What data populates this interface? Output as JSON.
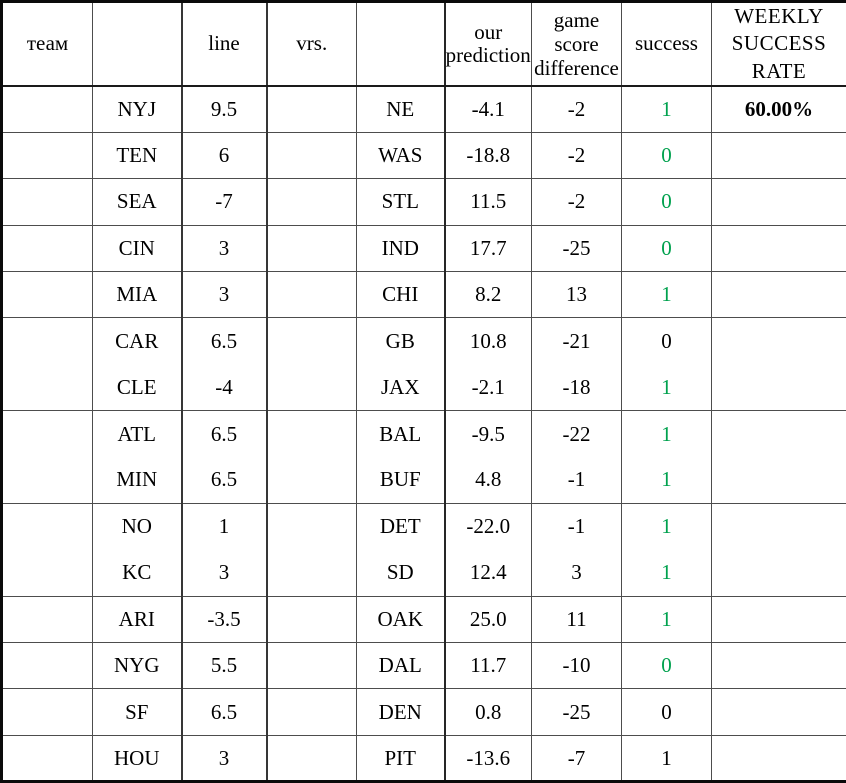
{
  "colors": {
    "red": "#ee0000",
    "green": "#00a14e",
    "black": "#000000"
  },
  "table": {
    "headers": [
      {
        "label": "теам"
      },
      {
        "label": ""
      },
      {
        "label": "line"
      },
      {
        "label": "vrs."
      },
      {
        "label": ""
      },
      {
        "label": "our prediction"
      },
      {
        "label": "game score difference"
      },
      {
        "label": "success"
      },
      {
        "label": "WEEKLY SUCCESS RATE"
      }
    ],
    "rows": [
      {
        "team": "NYJ",
        "line": "9.5",
        "opponent": "NE",
        "prediction": "-4.1",
        "score_difference": "-2",
        "success": "1",
        "success_color": "green",
        "weekly_rate": "60.00%",
        "merged_with_previous_row": false
      },
      {
        "team": "TEN",
        "line": "6",
        "opponent": "WAS",
        "prediction": "-18.8",
        "score_difference": "-2",
        "success": "0",
        "success_color": "green",
        "weekly_rate": "",
        "merged_with_previous_row": false
      },
      {
        "team": "SEA",
        "line": "-7",
        "opponent": "STL",
        "prediction": "11.5",
        "score_difference": "-2",
        "success": "0",
        "success_color": "green",
        "weekly_rate": "",
        "merged_with_previous_row": false
      },
      {
        "team": "CIN",
        "line": "3",
        "opponent": "IND",
        "prediction": "17.7",
        "score_difference": "-25",
        "success": "0",
        "success_color": "green",
        "weekly_rate": "",
        "merged_with_previous_row": false
      },
      {
        "team": "MIA",
        "line": "3",
        "opponent": "CHI",
        "prediction": "8.2",
        "score_difference": "13",
        "success": "1",
        "success_color": "green",
        "weekly_rate": "",
        "merged_with_previous_row": false
      },
      {
        "team": "CAR",
        "line": "6.5",
        "opponent": "GB",
        "prediction": "10.8",
        "score_difference": "-21",
        "success": "0",
        "success_color": "black",
        "weekly_rate": "",
        "merged_with_previous_row": false
      },
      {
        "team": "CLE",
        "line": "-4",
        "opponent": "JAX",
        "prediction": "-2.1",
        "score_difference": "-18",
        "success": "1",
        "success_color": "green",
        "weekly_rate": "",
        "merged_with_previous_row": true
      },
      {
        "team": "ATL",
        "line": "6.5",
        "opponent": "BAL",
        "prediction": "-9.5",
        "score_difference": "-22",
        "success": "1",
        "success_color": "green",
        "weekly_rate": "",
        "merged_with_previous_row": false
      },
      {
        "team": "MIN",
        "line": "6.5",
        "opponent": "BUF",
        "prediction": "4.8",
        "score_difference": "-1",
        "success": "1",
        "success_color": "green",
        "weekly_rate": "",
        "merged_with_previous_row": true
      },
      {
        "team": "NO",
        "line": "1",
        "opponent": "DET",
        "prediction": "-22.0",
        "score_difference": "-1",
        "success": "1",
        "success_color": "green",
        "weekly_rate": "",
        "merged_with_previous_row": false
      },
      {
        "team": "KC",
        "line": "3",
        "opponent": "SD",
        "prediction": "12.4",
        "score_difference": "3",
        "success": "1",
        "success_color": "green",
        "weekly_rate": "",
        "merged_with_previous_row": true
      },
      {
        "team": "ARI",
        "line": "-3.5",
        "opponent": "OAK",
        "prediction": "25.0",
        "score_difference": "11",
        "success": "1",
        "success_color": "green",
        "weekly_rate": "",
        "merged_with_previous_row": false
      },
      {
        "team": "NYG",
        "line": "5.5",
        "opponent": "DAL",
        "prediction": "11.7",
        "score_difference": "-10",
        "success": "0",
        "success_color": "green",
        "weekly_rate": "",
        "merged_with_previous_row": false
      },
      {
        "team": "SF",
        "line": "6.5",
        "opponent": "DEN",
        "prediction": "0.8",
        "score_difference": "-25",
        "success": "0",
        "success_color": "black",
        "weekly_rate": "",
        "merged_with_previous_row": false
      },
      {
        "team": "HOU",
        "line": "3",
        "opponent": "PIT",
        "prediction": "-13.6",
        "score_difference": "-7",
        "success": "1",
        "success_color": "black",
        "weekly_rate": "",
        "merged_with_previous_row": false
      }
    ]
  }
}
